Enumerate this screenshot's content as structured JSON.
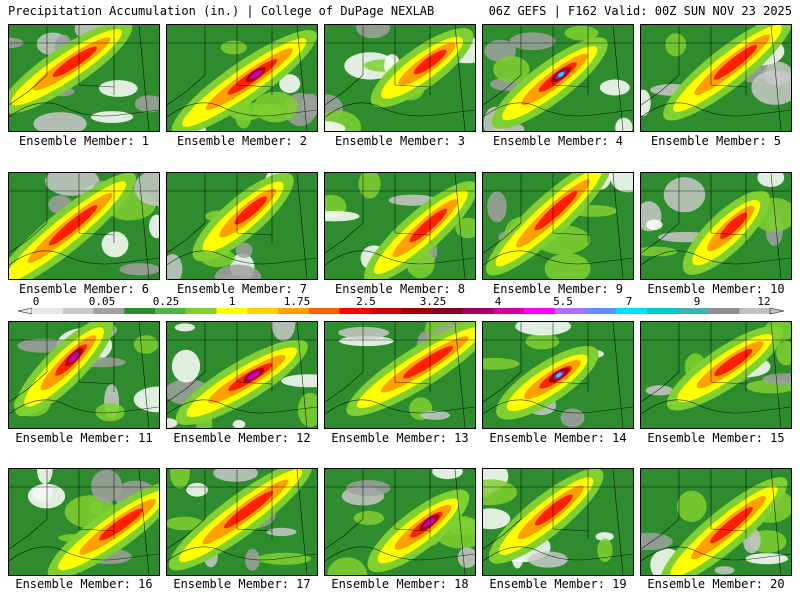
{
  "header": {
    "left": "Precipitation Accumulation (in.) | College of DuPage NEXLAB",
    "right": "06Z GEFS | F162 Valid: 00Z SUN NOV 23 2025"
  },
  "panel_label_prefix": "Ensemble Member: ",
  "members": [
    {
      "id": 1,
      "label": "Ensemble Member: 1"
    },
    {
      "id": 2,
      "label": "Ensemble Member: 2"
    },
    {
      "id": 3,
      "label": "Ensemble Member: 3"
    },
    {
      "id": 4,
      "label": "Ensemble Member: 4"
    },
    {
      "id": 5,
      "label": "Ensemble Member: 5"
    },
    {
      "id": 6,
      "label": "Ensemble Member: 6"
    },
    {
      "id": 7,
      "label": "Ensemble Member: 7"
    },
    {
      "id": 8,
      "label": "Ensemble Member: 8"
    },
    {
      "id": 9,
      "label": "Ensemble Member: 9"
    },
    {
      "id": 10,
      "label": "Ensemble Member: 10"
    },
    {
      "id": 11,
      "label": "Ensemble Member: 11"
    },
    {
      "id": 12,
      "label": "Ensemble Member: 12"
    },
    {
      "id": 13,
      "label": "Ensemble Member: 13"
    },
    {
      "id": 14,
      "label": "Ensemble Member: 14"
    },
    {
      "id": 15,
      "label": "Ensemble Member: 15"
    },
    {
      "id": 16,
      "label": "Ensemble Member: 16"
    },
    {
      "id": 17,
      "label": "Ensemble Member: 17"
    },
    {
      "id": 18,
      "label": "Ensemble Member: 18"
    },
    {
      "id": 19,
      "label": "Ensemble Member: 19"
    },
    {
      "id": 20,
      "label": "Ensemble Member: 20"
    }
  ],
  "legend": {
    "tick_labels": [
      "0",
      "0.05",
      "0.25",
      "1",
      "1.75",
      "2.5",
      "3.25",
      "4",
      "5.5",
      "7",
      "9",
      "12"
    ],
    "colors": [
      "#e6e6e6",
      "#c8c8c8",
      "#a0a0a0",
      "#2e8b2e",
      "#48b748",
      "#7fd030",
      "#ffff00",
      "#ffd000",
      "#ffa000",
      "#ff6000",
      "#ff0000",
      "#d00000",
      "#a00000",
      "#800020",
      "#a00060",
      "#d000a0",
      "#ff00ff",
      "#b070ff",
      "#6090ff",
      "#00e0ff",
      "#00c8c8",
      "#40b0b0",
      "#909090",
      "#c0c0c0"
    ]
  },
  "colors": {
    "background": "#ffffff",
    "land_base": "#2e8b2e",
    "light_green": "#7fd030",
    "yellow": "#ffff00",
    "orange": "#ffa000",
    "red": "#ff2000",
    "dark_red": "#a00000",
    "magenta": "#c000c0",
    "violet": "#b070ff",
    "cyan": "#00e0ff",
    "white_gap": "#ffffff",
    "gray_light": "#c8c8c8",
    "gray_mid": "#a0a0a0"
  }
}
